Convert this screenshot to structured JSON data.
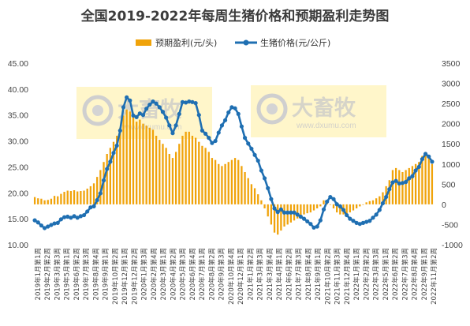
{
  "chart_data": {
    "type": "bar+line",
    "title": "全国2019-2022年每周生猪价格和预期盈利走势图",
    "legend": {
      "placement": "top",
      "entries": [
        {
          "name": "预期盈利(元/头)",
          "kind": "bar",
          "color": "#F0A30A"
        },
        {
          "name": "生猪价格(元/公斤)",
          "kind": "line",
          "color": "#1F6FB2"
        }
      ]
    },
    "watermark": {
      "brand": "大畜牧",
      "url": "www.dxumu.com"
    },
    "y_left": {
      "min": 10,
      "max": 45,
      "ticks": [
        "10.00",
        "15.00",
        "20.00",
        "25.00",
        "30.00",
        "35.00",
        "40.00",
        "45.00"
      ]
    },
    "y_right": {
      "min": -1000,
      "max": 3500,
      "ticks": [
        "-1000",
        "-500",
        "0",
        "500",
        "1000",
        "1500",
        "2000",
        "2500",
        "3000",
        "3500"
      ]
    },
    "x_tick_labels": [
      "2019年1月第1周",
      "2019年2月第2周",
      "2019年3月第3周",
      "2019年5月第1周",
      "2019年6月第2周",
      "2019年7月第3周",
      "2019年8月第4周",
      "2019年9月第1周",
      "2019年10月第2周",
      "2019年12月第1周",
      "2019年12月第2周",
      "2020年1月第3周",
      "2020年2月第4周",
      "2020年3月第1周",
      "2020年4月第2周",
      "2020年5月第3周",
      "2020年6月第4周",
      "2020年7月第1周",
      "2020年8月第2周",
      "2020年9月第3周",
      "2020年10月第4周",
      "2020年12月第1周",
      "2021年1月第2周",
      "2021年3月第3周",
      "2021年3月第4周",
      "2021年4月第1周",
      "2021年6月第2周",
      "2021年7月第3周",
      "2021年8月第4周",
      "2021年9月第1周",
      "2021年10月第2周",
      "2021年11月第3周",
      "2021年12月第4周",
      "2022年1月第1周",
      "2022年2月第2周",
      "2022年3月第3周",
      "2022年5月第1周",
      "2022年6月第2周",
      "2022年7月第3周",
      "2022年8月第4周",
      "2022年9月第1周",
      "2022年11月第2周"
    ],
    "series": [
      {
        "name": "生猪价格(元/公斤)",
        "axis": "left",
        "type": "line",
        "values": [
          14.7,
          14.3,
          13.7,
          13.2,
          13.5,
          13.8,
          14.1,
          14.2,
          14.9,
          15.3,
          15.4,
          15.2,
          15.5,
          15.2,
          15.5,
          15.7,
          16.4,
          17.2,
          17.4,
          18.6,
          19.9,
          22.4,
          24.6,
          26.0,
          27.7,
          29.1,
          32.0,
          36.5,
          38.4,
          37.8,
          34.9,
          34.6,
          35.3,
          35.0,
          36.2,
          37.0,
          37.6,
          37.2,
          36.5,
          35.6,
          34.5,
          33.0,
          31.5,
          33.0,
          35.2,
          37.5,
          37.4,
          37.6,
          37.5,
          37.3,
          35.0,
          32.0,
          31.4,
          30.6,
          29.6,
          30.0,
          31.6,
          33.0,
          34.0,
          35.5,
          36.5,
          36.3,
          35.2,
          32.8,
          30.6,
          29.5,
          28.5,
          27.3,
          26.2,
          24.3,
          22.8,
          20.9,
          18.8,
          17.0,
          16.3,
          16.8,
          16.2,
          16.2,
          16.2,
          16.2,
          15.8,
          15.4,
          15.0,
          14.5,
          14.0,
          13.3,
          13.5,
          14.7,
          16.8,
          18.3,
          19.2,
          18.8,
          17.8,
          17.4,
          16.7,
          15.7,
          15.0,
          14.6,
          14.2,
          14.0,
          14.2,
          14.4,
          14.6,
          15.2,
          15.8,
          16.7,
          18.0,
          19.2,
          20.7,
          22.0,
          22.3,
          21.8,
          21.9,
          22.1,
          22.8,
          23.2,
          24.3,
          25.0,
          26.5,
          27.5,
          27.0,
          26.0
        ]
      },
      {
        "name": "预期盈利(元/头)",
        "axis": "right",
        "type": "bar",
        "values": [
          180,
          150,
          140,
          100,
          110,
          140,
          210,
          200,
          260,
          310,
          340,
          330,
          350,
          320,
          330,
          340,
          390,
          450,
          520,
          680,
          850,
          1050,
          1250,
          1400,
          1550,
          1700,
          1900,
          2200,
          2350,
          2300,
          2150,
          2050,
          2100,
          2000,
          1950,
          1900,
          1850,
          1700,
          1600,
          1500,
          1400,
          1250,
          1150,
          1300,
          1500,
          1700,
          1800,
          1800,
          1700,
          1650,
          1550,
          1450,
          1400,
          1300,
          1150,
          1100,
          1000,
          950,
          1000,
          1050,
          1100,
          1150,
          1100,
          950,
          800,
          650,
          500,
          400,
          250,
          100,
          -100,
          -300,
          -500,
          -700,
          -750,
          -650,
          -550,
          -500,
          -450,
          -400,
          -350,
          -300,
          -250,
          -220,
          -200,
          -150,
          -100,
          -50,
          100,
          100,
          0,
          -100,
          -200,
          -250,
          -250,
          -230,
          -200,
          -150,
          -100,
          -50,
          0,
          50,
          80,
          100,
          150,
          200,
          300,
          450,
          600,
          850,
          900,
          850,
          800,
          850,
          900,
          950,
          1000,
          1050,
          1200,
          1300,
          1150,
          1000
        ]
      }
    ]
  }
}
